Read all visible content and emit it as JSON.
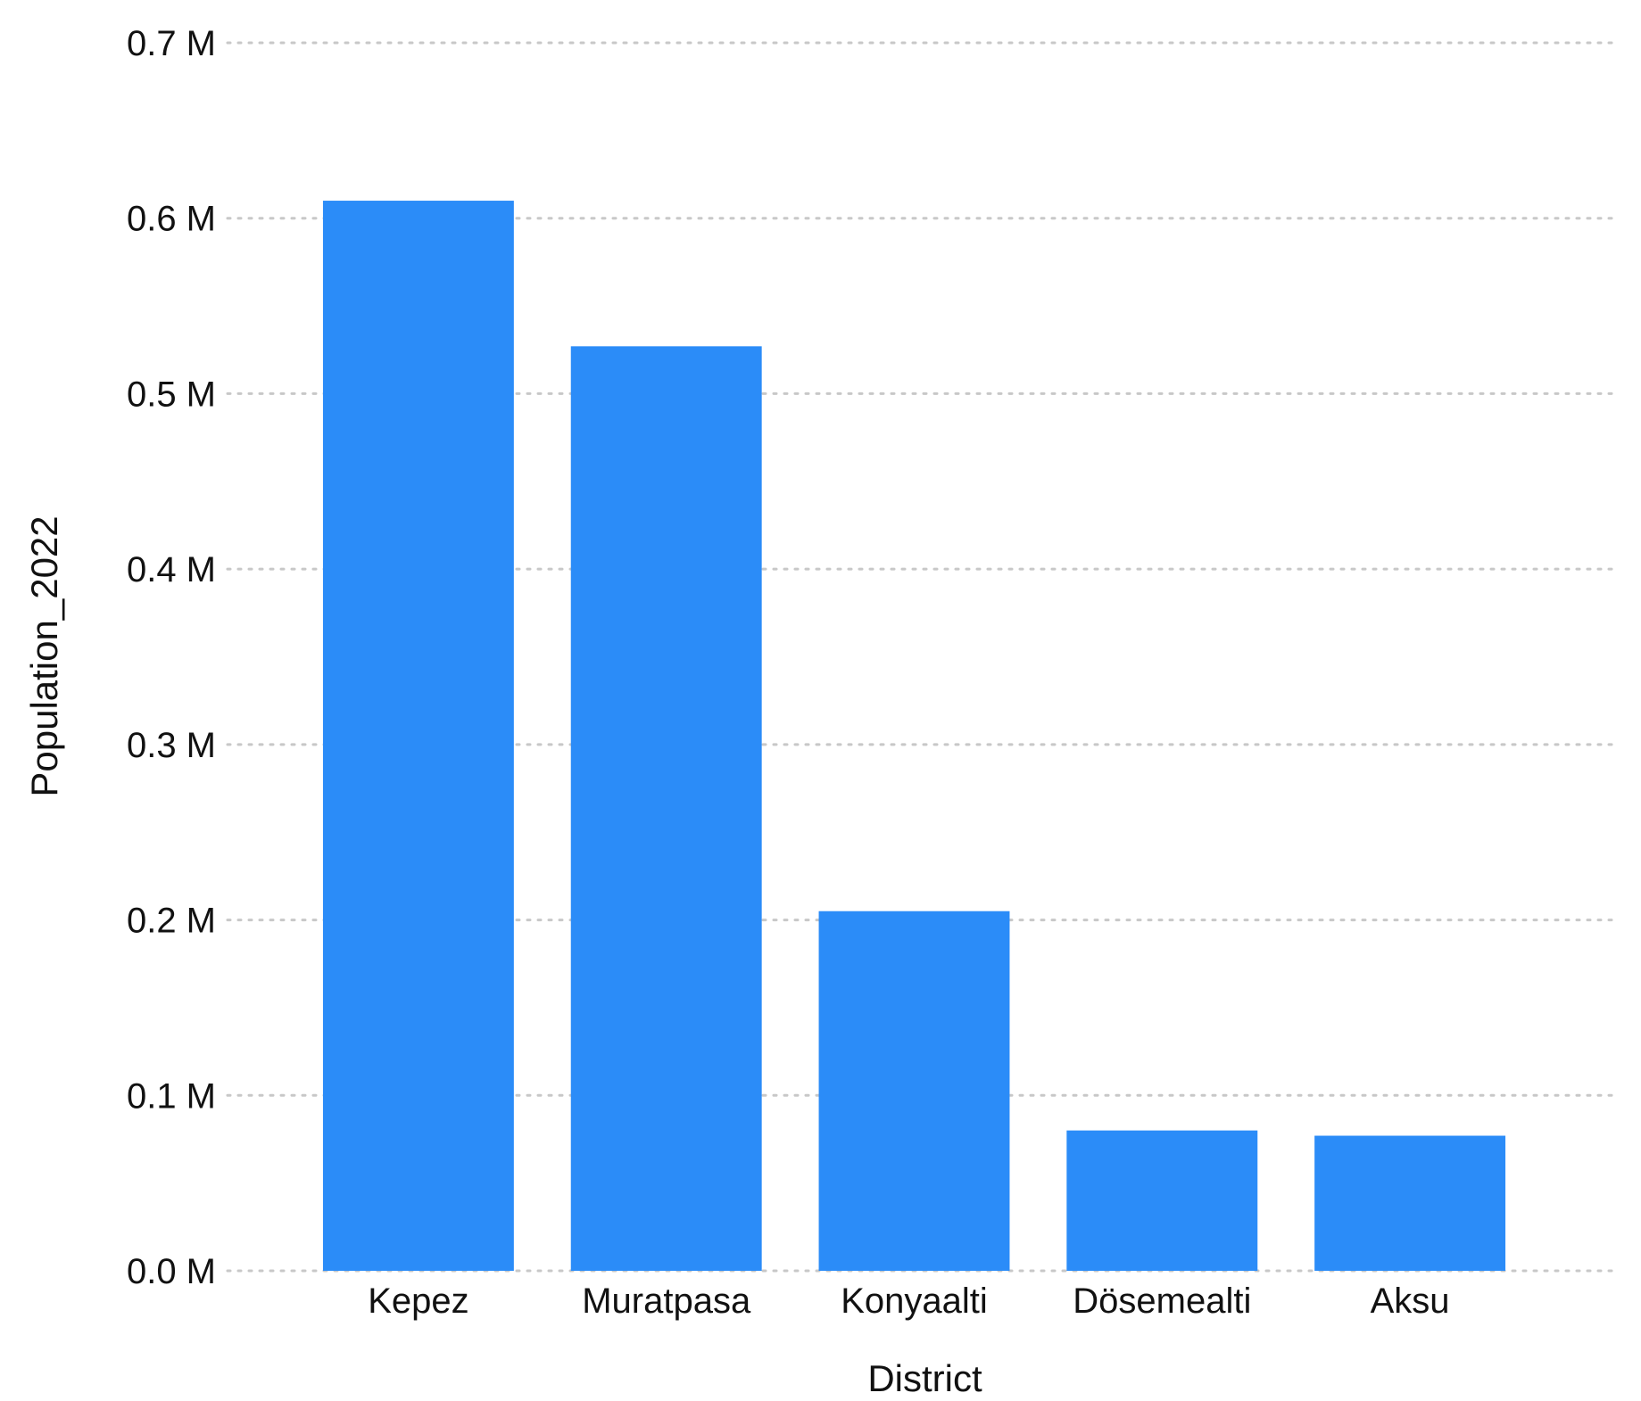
{
  "chart_data": {
    "type": "bar",
    "title": "",
    "xlabel": "District",
    "ylabel": "Population_2022",
    "categories": [
      "Kepez",
      "Muratpasa",
      "Konyaalti",
      "Dösemealti",
      "Aksu"
    ],
    "values": [
      610000,
      527000,
      205000,
      80000,
      77000
    ],
    "ylim": [
      0,
      700000
    ],
    "yticks": [
      0,
      100000,
      200000,
      300000,
      400000,
      500000,
      600000,
      700000
    ],
    "ytick_labels": [
      "0.0 M",
      "0.1 M",
      "0.2 M",
      "0.3 M",
      "0.4 M",
      "0.5 M",
      "0.6 M",
      "0.7 M"
    ],
    "grid": true,
    "legend": "none",
    "bar_color": "#2B8CF8",
    "grid_color": "#C8C8C8"
  }
}
